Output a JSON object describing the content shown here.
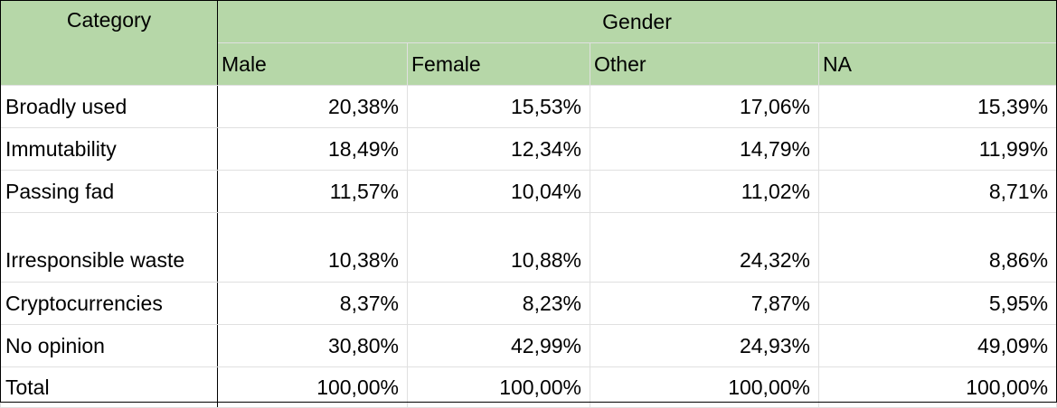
{
  "header": {
    "category_label": "Category",
    "group_label": "Gender",
    "columns": [
      "Male",
      "Female",
      "Other",
      "NA"
    ]
  },
  "rows": [
    {
      "label": "Broadly used",
      "values": [
        "20,38%",
        "15,53%",
        "17,06%",
        "15,39%"
      ]
    },
    {
      "label": "Immutability",
      "values": [
        "18,49%",
        "12,34%",
        "14,79%",
        "11,99%"
      ]
    },
    {
      "label": "Passing fad",
      "values": [
        "11,57%",
        "10,04%",
        "11,02%",
        "8,71%"
      ]
    },
    {
      "label": "Irresponsible waste",
      "values": [
        "10,38%",
        "10,88%",
        "24,32%",
        "8,86%"
      ]
    },
    {
      "label": "Cryptocurrencies",
      "values": [
        "8,37%",
        "8,23%",
        "7,87%",
        "5,95%"
      ]
    },
    {
      "label": "No opinion",
      "values": [
        "30,80%",
        "42,99%",
        "24,93%",
        "49,09%"
      ]
    }
  ],
  "total": {
    "label": "Total",
    "values": [
      "100,00%",
      "100,00%",
      "100,00%",
      "100,00%"
    ]
  },
  "colors": {
    "header_bg": "#b6d7a8",
    "grid_line": "#e0e0e0",
    "border": "#000000"
  }
}
